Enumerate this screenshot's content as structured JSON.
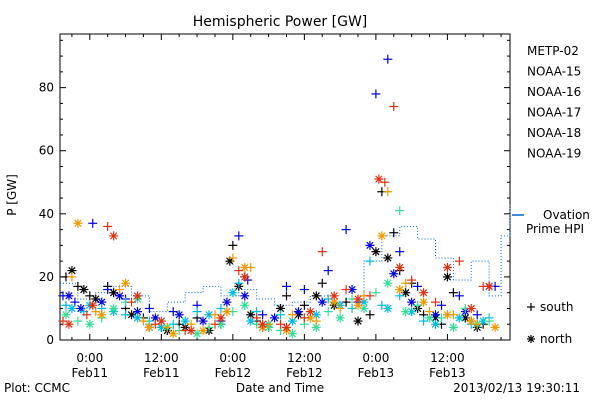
{
  "chart_data": {
    "type": "scatter",
    "title": "Hemispheric Power [GW]",
    "xlabel": "Date and Time",
    "ylabel": "P [GW]",
    "ylim": [
      0,
      97
    ],
    "xlim_hours": [
      -10,
      141
    ],
    "y_ticks": [
      0,
      20,
      40,
      60,
      80
    ],
    "x_ticks": [
      {
        "hour": 0,
        "time": "0:00",
        "date": "Feb11"
      },
      {
        "hour": 24,
        "time": "12:00",
        "date": "Feb11"
      },
      {
        "hour": 48,
        "time": "0:00",
        "date": "Feb12"
      },
      {
        "hour": 72,
        "time": "12:00",
        "date": "Feb12"
      },
      {
        "hour": 96,
        "time": "0:00",
        "date": "Feb13"
      },
      {
        "hour": 120,
        "time": "12:00",
        "date": "Feb13"
      }
    ],
    "grid": false,
    "legend_position": "right",
    "marker_legend": [
      {
        "symbol": "+",
        "label": "south"
      },
      {
        "symbol": "*",
        "label": "north"
      }
    ],
    "series": [
      {
        "name": "METP-02",
        "color": "#000000",
        "marker": "+",
        "points": [
          [
            -8,
            20
          ],
          [
            -4,
            17
          ],
          [
            0,
            14
          ],
          [
            6,
            17
          ],
          [
            12,
            10
          ],
          [
            18,
            7
          ],
          [
            24,
            4
          ],
          [
            30,
            5
          ],
          [
            36,
            7
          ],
          [
            44,
            5
          ],
          [
            48,
            30
          ],
          [
            52,
            20
          ],
          [
            56,
            6
          ],
          [
            60,
            4
          ],
          [
            66,
            14
          ],
          [
            72,
            11
          ],
          [
            78,
            18
          ],
          [
            86,
            12
          ],
          [
            94,
            8
          ],
          [
            98,
            47
          ],
          [
            102,
            34
          ],
          [
            104,
            22
          ],
          [
            108,
            18
          ],
          [
            112,
            8
          ],
          [
            118,
            5
          ],
          [
            122,
            15
          ],
          [
            128,
            6
          ],
          [
            132,
            5
          ]
        ]
      },
      {
        "name": "METP-02",
        "color": "#000000",
        "marker": "*",
        "points": [
          [
            -6,
            22
          ],
          [
            -2,
            16
          ],
          [
            2,
            13
          ],
          [
            8,
            15
          ],
          [
            14,
            8
          ],
          [
            20,
            4
          ],
          [
            26,
            3
          ],
          [
            32,
            4
          ],
          [
            40,
            3
          ],
          [
            47,
            25
          ],
          [
            50,
            17
          ],
          [
            54,
            8
          ],
          [
            58,
            4
          ],
          [
            64,
            10
          ],
          [
            70,
            8
          ],
          [
            76,
            14
          ],
          [
            82,
            11
          ],
          [
            90,
            6
          ],
          [
            96,
            28
          ],
          [
            100,
            26
          ],
          [
            106,
            15
          ],
          [
            110,
            10
          ],
          [
            116,
            7
          ],
          [
            120,
            20
          ],
          [
            126,
            7
          ],
          [
            130,
            4
          ]
        ]
      },
      {
        "name": "NOAA-15",
        "color": "#0000dd",
        "marker": "+",
        "points": [
          [
            -9,
            14
          ],
          [
            -5,
            12
          ],
          [
            1,
            37
          ],
          [
            6,
            16
          ],
          [
            12,
            13
          ],
          [
            20,
            10
          ],
          [
            28,
            9
          ],
          [
            36,
            11
          ],
          [
            44,
            6
          ],
          [
            50,
            33
          ],
          [
            53,
            19
          ],
          [
            58,
            8
          ],
          [
            66,
            17
          ],
          [
            72,
            16
          ],
          [
            80,
            22
          ],
          [
            86,
            35
          ],
          [
            90,
            12
          ],
          [
            96,
            78
          ],
          [
            100,
            89
          ],
          [
            104,
            28
          ],
          [
            110,
            17
          ],
          [
            118,
            11
          ],
          [
            124,
            14
          ],
          [
            130,
            8
          ],
          [
            136,
            17
          ]
        ]
      },
      {
        "name": "NOAA-15",
        "color": "#0000dd",
        "marker": "*",
        "points": [
          [
            -7,
            14
          ],
          [
            -3,
            10
          ],
          [
            4,
            12
          ],
          [
            10,
            14
          ],
          [
            16,
            9
          ],
          [
            22,
            7
          ],
          [
            30,
            8
          ],
          [
            38,
            6
          ],
          [
            46,
            12
          ],
          [
            52,
            14
          ],
          [
            62,
            7
          ],
          [
            70,
            9
          ],
          [
            78,
            12
          ],
          [
            88,
            16
          ],
          [
            94,
            30
          ],
          [
            102,
            21
          ],
          [
            108,
            12
          ],
          [
            116,
            8
          ],
          [
            126,
            9
          ],
          [
            134,
            17
          ]
        ]
      },
      {
        "name": "NOAA-16",
        "color": "#00bbdd",
        "marker": "+",
        "points": [
          [
            -8,
            11
          ],
          [
            -2,
            9
          ],
          [
            4,
            10
          ],
          [
            12,
            8
          ],
          [
            20,
            6
          ],
          [
            28,
            5
          ],
          [
            36,
            9
          ],
          [
            44,
            10
          ],
          [
            50,
            18
          ],
          [
            56,
            9
          ],
          [
            64,
            8
          ],
          [
            72,
            7
          ],
          [
            80,
            13
          ],
          [
            88,
            10
          ],
          [
            94,
            25
          ],
          [
            98,
            11
          ],
          [
            104,
            14
          ],
          [
            112,
            6
          ],
          [
            120,
            8
          ],
          [
            128,
            5
          ],
          [
            134,
            7
          ]
        ]
      },
      {
        "name": "NOAA-16",
        "color": "#00bbdd",
        "marker": "*",
        "points": [
          [
            -6,
            10
          ],
          [
            0,
            11
          ],
          [
            8,
            9
          ],
          [
            16,
            7
          ],
          [
            24,
            4
          ],
          [
            32,
            6
          ],
          [
            40,
            8
          ],
          [
            48,
            15
          ],
          [
            54,
            6
          ],
          [
            60,
            5
          ],
          [
            68,
            6
          ],
          [
            76,
            8
          ],
          [
            84,
            11
          ],
          [
            92,
            12
          ],
          [
            100,
            10
          ],
          [
            108,
            9
          ],
          [
            116,
            5
          ],
          [
            124,
            7
          ],
          [
            132,
            6
          ]
        ]
      },
      {
        "name": "NOAA-17",
        "color": "#33dd99",
        "marker": "+",
        "points": [
          [
            -4,
            6
          ],
          [
            4,
            7
          ],
          [
            12,
            12
          ],
          [
            20,
            5
          ],
          [
            30,
            3
          ],
          [
            40,
            4
          ],
          [
            48,
            9
          ],
          [
            56,
            5
          ],
          [
            64,
            3
          ],
          [
            72,
            5
          ],
          [
            80,
            9
          ],
          [
            88,
            13
          ],
          [
            96,
            15
          ],
          [
            104,
            41
          ],
          [
            110,
            11
          ],
          [
            118,
            7
          ],
          [
            126,
            10
          ],
          [
            134,
            6
          ]
        ]
      },
      {
        "name": "NOAA-17",
        "color": "#33dd99",
        "marker": "*",
        "points": [
          [
            -8,
            8
          ],
          [
            0,
            5
          ],
          [
            8,
            10
          ],
          [
            16,
            13
          ],
          [
            26,
            4
          ],
          [
            36,
            2
          ],
          [
            44,
            5
          ],
          [
            52,
            11
          ],
          [
            60,
            4
          ],
          [
            68,
            2
          ],
          [
            76,
            4
          ],
          [
            84,
            7
          ],
          [
            92,
            10
          ],
          [
            100,
            18
          ],
          [
            106,
            9
          ],
          [
            114,
            7
          ],
          [
            122,
            4
          ],
          [
            130,
            5
          ]
        ]
      },
      {
        "name": "NOAA-18",
        "color": "#ee9900",
        "marker": "+",
        "points": [
          [
            -6,
            20
          ],
          [
            2,
            9
          ],
          [
            10,
            16
          ],
          [
            18,
            6
          ],
          [
            26,
            4
          ],
          [
            34,
            5
          ],
          [
            42,
            8
          ],
          [
            48,
            26
          ],
          [
            54,
            23
          ],
          [
            60,
            5
          ],
          [
            68,
            8
          ],
          [
            76,
            6
          ],
          [
            84,
            10
          ],
          [
            92,
            14
          ],
          [
            100,
            47
          ],
          [
            106,
            18
          ],
          [
            114,
            9
          ],
          [
            122,
            8
          ],
          [
            130,
            5
          ]
        ]
      },
      {
        "name": "NOAA-18",
        "color": "#ee9900",
        "marker": "*",
        "points": [
          [
            -4,
            37
          ],
          [
            4,
            8
          ],
          [
            12,
            18
          ],
          [
            20,
            4
          ],
          [
            28,
            2
          ],
          [
            38,
            3
          ],
          [
            46,
            9
          ],
          [
            52,
            23
          ],
          [
            58,
            4
          ],
          [
            66,
            3
          ],
          [
            74,
            7
          ],
          [
            82,
            12
          ],
          [
            90,
            11
          ],
          [
            98,
            33
          ],
          [
            104,
            16
          ],
          [
            112,
            12
          ],
          [
            120,
            8
          ],
          [
            128,
            6
          ],
          [
            136,
            4
          ]
        ]
      },
      {
        "name": "NOAA-19",
        "color": "#dd3311",
        "marker": "+",
        "points": [
          [
            -9,
            6
          ],
          [
            -1,
            8
          ],
          [
            6,
            36
          ],
          [
            14,
            12
          ],
          [
            22,
            5
          ],
          [
            32,
            3
          ],
          [
            42,
            5
          ],
          [
            50,
            22
          ],
          [
            56,
            7
          ],
          [
            64,
            5
          ],
          [
            72,
            7
          ],
          [
            78,
            28
          ],
          [
            86,
            16
          ],
          [
            94,
            14
          ],
          [
            99,
            50
          ],
          [
            102,
            74
          ],
          [
            108,
            19
          ],
          [
            116,
            12
          ],
          [
            124,
            25
          ],
          [
            132,
            17
          ]
        ]
      },
      {
        "name": "NOAA-19",
        "color": "#dd3311",
        "marker": "*",
        "points": [
          [
            -7,
            5
          ],
          [
            1,
            11
          ],
          [
            8,
            33
          ],
          [
            16,
            14
          ],
          [
            24,
            6
          ],
          [
            34,
            3
          ],
          [
            44,
            7
          ],
          [
            52,
            20
          ],
          [
            58,
            5
          ],
          [
            66,
            4
          ],
          [
            74,
            9
          ],
          [
            82,
            14
          ],
          [
            90,
            13
          ],
          [
            97,
            51
          ],
          [
            104,
            23
          ],
          [
            112,
            15
          ],
          [
            120,
            23
          ],
          [
            128,
            10
          ],
          [
            134,
            17
          ]
        ]
      }
    ],
    "ovation": {
      "name": "Ovation Prime HPI",
      "color": "#0066cc",
      "x": [
        -10,
        -4,
        2,
        8,
        14,
        20,
        26,
        32,
        38,
        44,
        50,
        56,
        62,
        68,
        74,
        80,
        86,
        92,
        98,
        104,
        110,
        116,
        122,
        128,
        134,
        138,
        141
      ],
      "y": [
        18,
        13,
        15,
        17,
        14,
        9,
        12,
        15,
        17,
        14,
        16,
        13,
        11,
        12,
        14,
        12,
        13,
        25,
        33,
        36,
        32,
        26,
        19,
        25,
        14,
        33,
        43
      ]
    }
  },
  "footer": {
    "plot_credit": "Plot: CCMC",
    "timestamp": "2013/02/13 19:30:11"
  }
}
